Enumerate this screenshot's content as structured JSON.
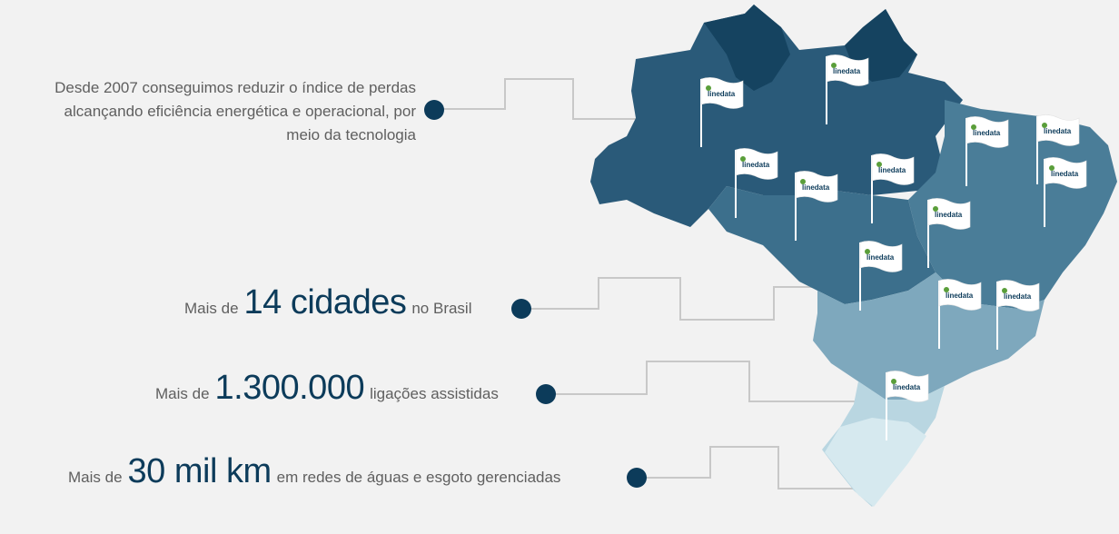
{
  "intro": {
    "line1": "Desde 2007 conseguimos reduzir o índice de perdas",
    "line2": "alcançando eficiência energética e operacional, por",
    "line3": "meio da tecnologia"
  },
  "stats": [
    {
      "pre": "Mais de",
      "value": "14 cidades",
      "post": "no Brasil"
    },
    {
      "pre": "Mais de",
      "value": "1.300.000",
      "post": "ligações assistidas"
    },
    {
      "pre": "Mais de",
      "value": "30 mil km",
      "post": "em redes de águas e esgoto gerenciadas"
    }
  ],
  "flag_label": "linedata",
  "colors": {
    "accent": "#0c3b5a",
    "map_dark": "#1f4f6e",
    "map_mid": "#4f7f99",
    "map_light": "#9fc3d2",
    "map_lightest": "#d6e9ef"
  }
}
